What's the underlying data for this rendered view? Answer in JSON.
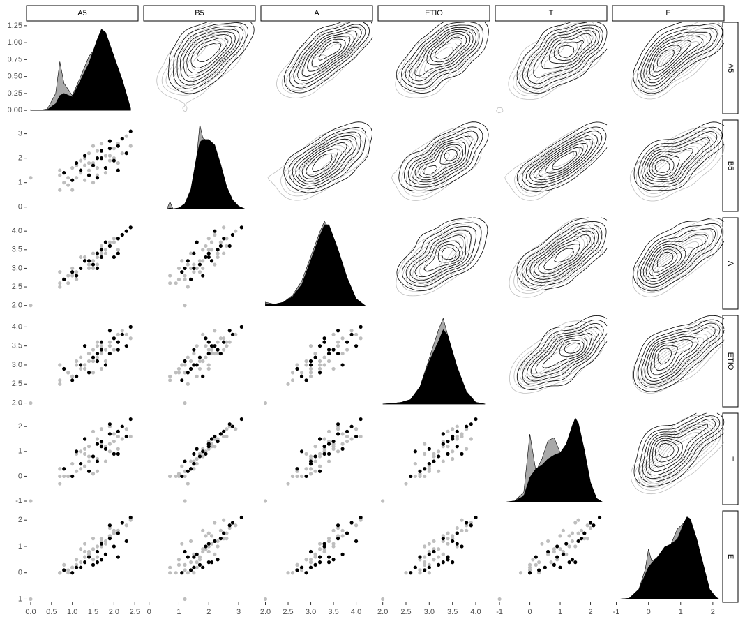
{
  "chart_data": {
    "type": "pairs",
    "variables": [
      "A5",
      "B5",
      "A",
      "ETIO",
      "T",
      "E"
    ],
    "axes": [
      {
        "lim": [
          -0.1,
          2.58
        ],
        "ticks": [
          {
            "value": 0,
            "label": "0.0"
          },
          0.5,
          {
            "value": 1,
            "label": "1.0"
          },
          1.5,
          {
            "value": 2,
            "label": "2.0"
          },
          2.5
        ]
      },
      {
        "lim": [
          -0.18,
          3.56
        ],
        "ticks": [
          0,
          1,
          2,
          3
        ]
      },
      {
        "lim": [
          1.9,
          4.36
        ],
        "ticks": [
          {
            "value": 2,
            "label": "2.0"
          },
          2.5,
          {
            "value": 3,
            "label": "3.0"
          },
          3.5,
          {
            "value": 4,
            "label": "4.0"
          }
        ]
      },
      {
        "lim": [
          1.9,
          4.3
        ],
        "ticks": [
          {
            "value": 2,
            "label": "2.0"
          },
          2.5,
          {
            "value": 3,
            "label": "3.0"
          },
          3.5,
          {
            "value": 4,
            "label": "4.0"
          }
        ]
      },
      {
        "lim": [
          -1.14,
          2.54
        ],
        "ticks": [
          -1,
          0,
          1,
          2
        ]
      },
      {
        "lim": [
          -1.12,
          2.35
        ],
        "ticks": [
          -1,
          0,
          1,
          2
        ]
      }
    ],
    "series": [
      {
        "color": "#bebebe",
        "values": [
          [
            1.2,
            1.8,
            2.1,
            0.9,
            1.5,
            1.7,
            0.7,
            2.3,
            1.4,
            1.0,
            1.9,
            1.3,
            1.6,
            2.0,
            0.8,
            1.1,
            1.7,
            2.2,
            1.5,
            0.7,
            1.3,
            1.9,
            1.6,
            1.2,
            2.4,
            1.0,
            1.8,
            1.4,
            0.7,
            2.0,
            1.5,
            1.7,
            1.1,
            2.1,
            1.3,
            0.0,
            1.6,
            0.9,
            1.9,
            1.4
          ],
          [
            1.4,
            2.1,
            2.6,
            1.2,
            1.8,
            2.3,
            0.7,
            2.9,
            1.5,
            1.6,
            1.9,
            2.0,
            1.3,
            2.4,
            1.0,
            1.7,
            2.0,
            2.2,
            2.5,
            1.3,
            1.1,
            2.7,
            1.6,
            1.9,
            2.5,
            0.7,
            1.4,
            2.2,
            1.5,
            2.0,
            1.0,
            2.6,
            1.2,
            1.8,
            1.7,
            1.2,
            2.3,
            0.9,
            2.1,
            1.8
          ],
          [
            3.0,
            3.5,
            3.8,
            2.8,
            3.2,
            3.4,
            2.6,
            4.0,
            3.1,
            3.0,
            3.6,
            3.3,
            3.1,
            3.7,
            2.7,
            2.9,
            3.5,
            3.9,
            3.4,
            2.5,
            3.2,
            3.6,
            3.0,
            3.3,
            4.1,
            2.8,
            3.4,
            3.1,
            2.9,
            3.8,
            3.0,
            3.6,
            2.7,
            3.5,
            3.2,
            2.0,
            3.3,
            2.6,
            3.7,
            3.0
          ],
          [
            2.9,
            3.4,
            3.6,
            2.8,
            3.1,
            3.3,
            2.6,
            3.8,
            3.3,
            2.7,
            3.5,
            3.0,
            3.2,
            3.7,
            2.9,
            3.1,
            2.9,
            3.9,
            3.4,
            2.5,
            3.0,
            3.6,
            3.5,
            3.2,
            3.7,
            2.7,
            3.1,
            3.3,
            3.0,
            3.4,
            2.8,
            3.5,
            3.0,
            3.8,
            2.9,
            2.0,
            3.6,
            2.8,
            3.3,
            3.1
          ],
          [
            0.3,
            1.2,
            1.6,
            0.0,
            0.8,
            1.4,
            0.0,
            1.9,
            0.6,
            0.5,
            1.0,
            1.1,
            0.2,
            1.7,
            0.0,
            0.9,
            1.3,
            1.5,
            1.8,
            -0.3,
            0.4,
            2.0,
            0.7,
            1.0,
            1.6,
            0.0,
            0.6,
            1.2,
            0.3,
            1.4,
            0.1,
            1.9,
            0.2,
            1.1,
            0.9,
            -1.0,
            1.5,
            0.0,
            1.3,
            0.8
          ],
          [
            0.4,
            1.1,
            1.5,
            0.1,
            0.9,
            1.2,
            0.0,
            1.8,
            0.7,
            0.2,
            1.4,
            0.8,
            0.6,
            1.6,
            0.3,
            0.5,
            1.0,
            1.9,
            1.3,
            0.0,
            1.1,
            1.7,
            0.4,
            0.9,
            2.0,
            0.2,
            1.2,
            0.7,
            0.0,
            1.5,
            0.5,
            1.3,
            0.3,
            1.6,
            0.6,
            -1.0,
            1.0,
            0.0,
            1.4,
            0.8
          ]
        ]
      },
      {
        "color": "#000000",
        "values": [
          [
            1.6,
            2.1,
            1.2,
            1.9,
            1.4,
            2.3,
            1.0,
            1.7,
            2.0,
            1.5,
            2.2,
            0.8,
            1.8,
            1.3,
            2.4,
            1.6,
            1.1,
            1.9,
            2.1,
            1.7
          ],
          [
            2.0,
            2.5,
            1.5,
            2.7,
            1.3,
            2.2,
            1.1,
            2.3,
            1.9,
            1.7,
            2.8,
            1.4,
            1.6,
            2.1,
            3.1,
            1.2,
            1.8,
            2.4,
            1.5,
            2.0
          ],
          [
            3.4,
            3.8,
            3.0,
            3.6,
            3.2,
            4.0,
            2.9,
            3.5,
            3.3,
            3.1,
            3.9,
            2.7,
            3.7,
            3.2,
            4.1,
            3.0,
            2.8,
            3.6,
            3.4,
            3.3
          ],
          [
            3.3,
            3.6,
            3.0,
            3.9,
            2.8,
            3.5,
            2.6,
            3.4,
            3.7,
            3.2,
            3.8,
            2.9,
            3.0,
            3.5,
            4.0,
            3.1,
            2.7,
            3.3,
            3.4,
            3.6
          ],
          [
            1.3,
            1.8,
            0.5,
            2.1,
            0.2,
            1.6,
            0.0,
            1.4,
            0.9,
            0.8,
            2.0,
            0.3,
            1.1,
            1.5,
            2.3,
            0.6,
            1.0,
            1.7,
            0.9,
            1.2
          ],
          [
            0.4,
            1.5,
            0.2,
            1.8,
            0.6,
            1.2,
            0.0,
            0.5,
            1.0,
            0.3,
            1.9,
            0.1,
            0.7,
            0.4,
            2.1,
            0.8,
            0.2,
            1.3,
            0.6,
            1.1
          ]
        ]
      }
    ],
    "density": {
      "x": [
        [
          0,
          0.2,
          0.4,
          0.6,
          0.7,
          0.8,
          1.0,
          1.2,
          1.4,
          1.6,
          1.7,
          1.8,
          2.0,
          2.2,
          2.4
        ],
        [
          0.6,
          0.7,
          0.8,
          1.0,
          1.2,
          1.4,
          1.6,
          1.7,
          1.8,
          2.0,
          2.2,
          2.4,
          2.6,
          2.8,
          3.0,
          3.2
        ],
        [
          2.0,
          2.2,
          2.4,
          2.6,
          2.8,
          3.0,
          3.2,
          3.3,
          3.4,
          3.6,
          3.8,
          4.0,
          4.2
        ],
        [
          2.0,
          2.2,
          2.4,
          2.6,
          2.8,
          3.0,
          3.2,
          3.3,
          3.4,
          3.6,
          3.8,
          4.0,
          4.2
        ],
        [
          -1,
          -0.8,
          -0.5,
          -0.2,
          0,
          0.2,
          0.4,
          0.6,
          0.8,
          1.0,
          1.2,
          1.4,
          1.5,
          1.6,
          1.8,
          2.0,
          2.2,
          2.4
        ],
        [
          -1,
          -0.6,
          -0.3,
          -0.1,
          0,
          0.1,
          0.3,
          0.5,
          0.7,
          0.9,
          1.1,
          1.2,
          1.3,
          1.5,
          1.7,
          1.9,
          2.1,
          2.2
        ]
      ],
      "ylim": [
        [
          -0.05,
          1.3
        ],
        [
          -0.03,
          1.0
        ],
        [
          -0.05,
          1.25
        ],
        [
          -0.05,
          1.55
        ],
        [
          -0.02,
          0.72
        ],
        [
          -0.03,
          0.88
        ]
      ],
      "yticks": [
        {
          "value": 0,
          "label": "0.00"
        },
        0.25,
        {
          "value": 0.5,
          "label": "0.50"
        },
        0.75,
        {
          "value": 1,
          "label": "1.00"
        },
        1.25
      ],
      "series": [
        {
          "color": "#a9a9a9",
          "values": [
            [
              0.01,
              0,
              0.02,
              0.25,
              0.72,
              0.4,
              0.22,
              0.5,
              0.8,
              0.95,
              1.1,
              1.1,
              0.75,
              0.45,
              0.03
            ],
            [
              0,
              0.08,
              0,
              0.01,
              0.05,
              0.2,
              0.6,
              0.95,
              0.8,
              0.75,
              0.7,
              0.5,
              0.25,
              0.1,
              0.03,
              0
            ],
            [
              0.05,
              0.02,
              0.05,
              0.15,
              0.35,
              0.7,
              1.05,
              1.2,
              1.1,
              0.75,
              0.35,
              0.08,
              0
            ],
            [
              0,
              0.01,
              0.03,
              0.08,
              0.3,
              0.8,
              1.3,
              1.5,
              1.2,
              0.6,
              0.2,
              0.03,
              0
            ],
            [
              0,
              0,
              0.01,
              0.08,
              0.55,
              0.25,
              0.35,
              0.5,
              0.52,
              0.4,
              0.45,
              0.6,
              0.66,
              0.62,
              0.4,
              0.15,
              0.03,
              0
            ],
            [
              0,
              0.01,
              0.1,
              0.3,
              0.5,
              0.38,
              0.42,
              0.5,
              0.55,
              0.7,
              0.76,
              0.82,
              0.8,
              0.6,
              0.35,
              0.1,
              0.02,
              0
            ]
          ]
        },
        {
          "color": "#000000",
          "values": [
            [
              0.01,
              0,
              0.01,
              0.1,
              0.22,
              0.25,
              0.2,
              0.45,
              0.7,
              1.05,
              1.2,
              1.15,
              0.8,
              0.45,
              0.02
            ],
            [
              0,
              0.01,
              0,
              0.01,
              0.06,
              0.22,
              0.6,
              0.75,
              0.78,
              0.78,
              0.72,
              0.5,
              0.25,
              0.1,
              0.03,
              0
            ],
            [
              0.03,
              0.02,
              0.05,
              0.13,
              0.3,
              0.65,
              1.0,
              1.15,
              1.15,
              0.8,
              0.4,
              0.1,
              0
            ],
            [
              0,
              0.01,
              0.03,
              0.08,
              0.3,
              0.75,
              1.1,
              1.3,
              1.2,
              0.65,
              0.22,
              0.03,
              0
            ],
            [
              0,
              0,
              0.01,
              0.05,
              0.2,
              0.27,
              0.3,
              0.35,
              0.38,
              0.4,
              0.47,
              0.62,
              0.68,
              0.64,
              0.42,
              0.16,
              0.03,
              0
            ],
            [
              0,
              0.01,
              0.1,
              0.25,
              0.32,
              0.36,
              0.43,
              0.52,
              0.55,
              0.6,
              0.76,
              0.82,
              0.8,
              0.6,
              0.35,
              0.1,
              0.02,
              0
            ]
          ]
        }
      ]
    }
  }
}
